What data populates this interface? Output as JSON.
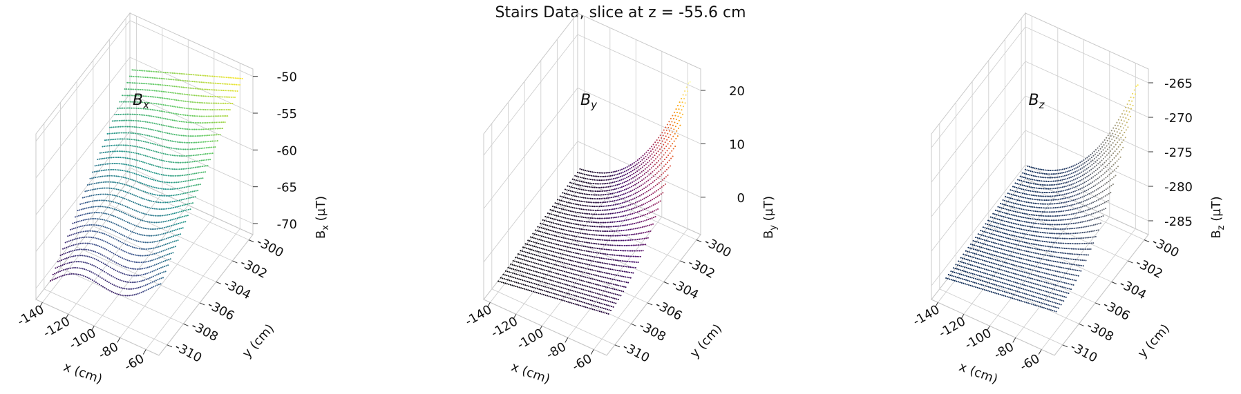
{
  "suptitle": "Stairs Data, slice at z = -55.6 cm",
  "chart_data": [
    {
      "type": "scatter3d",
      "title_main": "B",
      "title_sub": "x",
      "xlabel": "x (cm)",
      "ylabel": "y (cm)",
      "zlabel_main": "B",
      "zlabel_sub": "x",
      "zlabel_unit": " (µT)",
      "xlim": [
        -145,
        -50
      ],
      "ylim": [
        -311,
        -299.5
      ],
      "zlim": [
        -71.5,
        -49
      ],
      "xticks": [
        -140,
        -120,
        -100,
        -80,
        -60
      ],
      "yticks": [
        -310,
        -308,
        -306,
        -304,
        -302,
        -300
      ],
      "zticks": [
        -70,
        -65,
        -60,
        -55,
        -50
      ],
      "grid": true,
      "colormap": [
        "#440154",
        "#3b528b",
        "#21918c",
        "#5ec962",
        "#fde725"
      ],
      "surface": {
        "x_range": [
          -140,
          -55
        ],
        "y_range": [
          -310,
          -300
        ],
        "z_low": -70,
        "z_high": -50,
        "shape": "ramp"
      }
    },
    {
      "type": "scatter3d",
      "title_main": "B",
      "title_sub": "y",
      "xlabel": "x (cm)",
      "ylabel": "y (cm)",
      "zlabel_main": "B",
      "zlabel_sub": "y",
      "zlabel_unit": " (µT)",
      "xlim": [
        -145,
        -50
      ],
      "ylim": [
        -311,
        -299.5
      ],
      "zlim": [
        -7,
        24
      ],
      "xticks": [
        -140,
        -120,
        -100,
        -80,
        -60
      ],
      "yticks": [
        -310,
        -308,
        -306,
        -304,
        -302,
        -300
      ],
      "zticks": [
        0,
        10,
        20
      ],
      "grid": true,
      "colormap": [
        "#000004",
        "#420a68",
        "#932667",
        "#dd513a",
        "#fca50a",
        "#fcffa4"
      ],
      "surface": {
        "x_range": [
          -140,
          -55
        ],
        "y_range": [
          -310,
          -300
        ],
        "z_low": -5,
        "z_high": 22,
        "shape": "corner"
      }
    },
    {
      "type": "scatter3d",
      "title_main": "B",
      "title_sub": "z",
      "xlabel": "x (cm)",
      "ylabel": "y (cm)",
      "zlabel_main": "B",
      "zlabel_sub": "z",
      "zlabel_unit": " (µT)",
      "xlim": [
        -145,
        -50
      ],
      "ylim": [
        -311,
        -299.5
      ],
      "zlim": [
        -287,
        -263
      ],
      "xticks": [
        -140,
        -120,
        -100,
        -80,
        -60
      ],
      "yticks": [
        -310,
        -308,
        -306,
        -304,
        -302,
        -300
      ],
      "zticks": [
        -285,
        -280,
        -275,
        -270,
        -265
      ],
      "grid": true,
      "colormap": [
        "#00204d",
        "#31446b",
        "#666970",
        "#958f78",
        "#cbba69",
        "#ffea46"
      ],
      "surface": {
        "x_range": [
          -140,
          -55
        ],
        "y_range": [
          -310,
          -300
        ],
        "z_low": -285,
        "z_high": -265,
        "shape": "corner"
      }
    }
  ]
}
